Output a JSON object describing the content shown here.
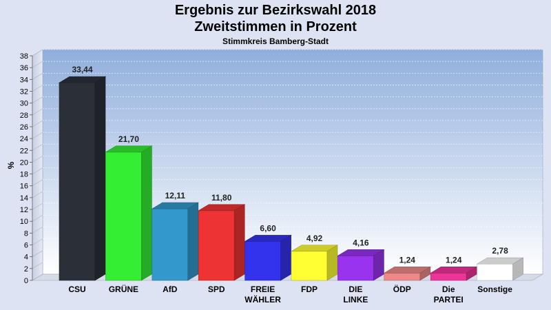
{
  "chart_data": {
    "type": "bar",
    "title": "Ergebnis zur Bezirkswahl 2018",
    "title_line2": "Zweitstimmen in Prozent",
    "subtitle": "Stimmkreis Bamberg-Stadt",
    "ylabel": "%",
    "xlabel": "",
    "ylim": [
      0,
      38
    ],
    "ytick_step": 2,
    "grid": true,
    "categories": [
      [
        "CSU"
      ],
      [
        "GRÜNE"
      ],
      [
        "AfD"
      ],
      [
        "SPD"
      ],
      [
        "FREIE",
        "WÄHLER"
      ],
      [
        "FDP"
      ],
      [
        "DIE",
        "LINKE"
      ],
      [
        "ÖDP"
      ],
      [
        "Die",
        "PARTEI"
      ],
      [
        "Sonstige"
      ]
    ],
    "values": [
      33.44,
      21.7,
      12.11,
      11.8,
      6.6,
      4.92,
      4.16,
      1.24,
      1.24,
      2.78
    ],
    "value_labels": [
      "33,44",
      "21,70",
      "12,11",
      "11,80",
      "6,60",
      "4,92",
      "4,16",
      "1,24",
      "1,24",
      "2,78"
    ],
    "colors": [
      "#2b2f38",
      "#33ee33",
      "#3399cc",
      "#ee3333",
      "#3333ee",
      "#ffff33",
      "#9933ee",
      "#ee8888",
      "#ee3399",
      "#ffffff"
    ]
  }
}
